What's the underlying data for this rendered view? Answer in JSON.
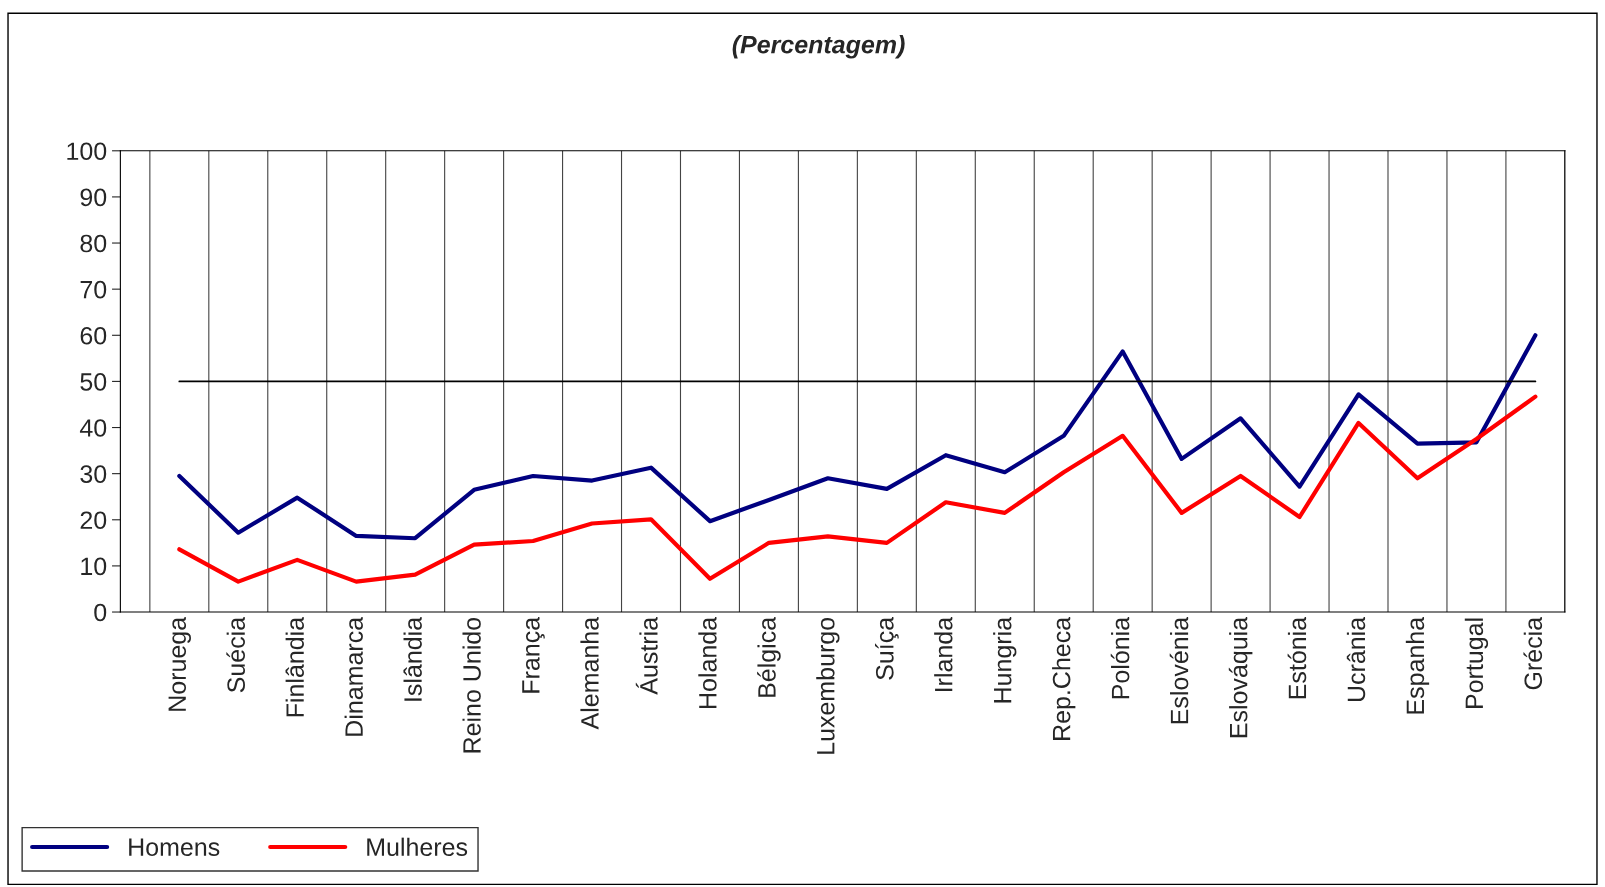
{
  "chart_data": {
    "type": "line",
    "title": "(Percentagem)",
    "categories": [
      "Noruega",
      "Suécia",
      "Finlândia",
      "Dinamarca",
      "Islândia",
      "Reino Unido",
      "França",
      "Alemanha",
      "Áustria",
      "Holanda",
      "Bélgica",
      "Luxemburgo",
      "Suíça",
      "Irlanda",
      "Hungria",
      "Rep.Checa",
      "Polónia",
      "Eslovénia",
      "Eslováquia",
      "Estónia",
      "Ucrânia",
      "Espanha",
      "Portugal",
      "Grécia"
    ],
    "series": [
      {
        "name": "Homens",
        "color": "#000080",
        "values": [
          29.5,
          17.2,
          24.8,
          16.5,
          16,
          26.5,
          29.5,
          28.5,
          31.3,
          19.7,
          24.3,
          29,
          26.7,
          34,
          30.3,
          38.2,
          56.5,
          33.2,
          42,
          27.2,
          47.2,
          36.5,
          36.8,
          60
        ]
      },
      {
        "name": "Mulheres",
        "color": "#ff0000",
        "values": [
          13.6,
          6.6,
          11.3,
          6.6,
          8.1,
          14.6,
          15.4,
          19.2,
          20.1,
          7.2,
          15,
          16.4,
          15,
          23.8,
          21.5,
          30.3,
          38.2,
          21.5,
          29.5,
          20.6,
          41,
          29,
          37.5,
          46.7
        ]
      }
    ],
    "ylim": [
      0,
      100
    ],
    "yticks": [
      0,
      10,
      20,
      30,
      40,
      50,
      60,
      70,
      80,
      90,
      100
    ],
    "ref_lines": [
      {
        "axis": "y",
        "value": 50,
        "color": "#000000"
      }
    ],
    "grid": "x",
    "legend": "bottom left",
    "marker": "none",
    "line_style": "solid"
  }
}
